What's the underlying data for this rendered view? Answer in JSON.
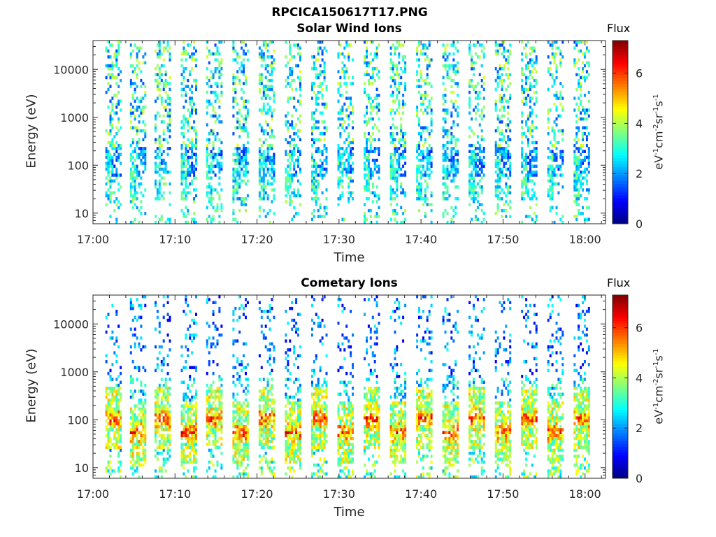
{
  "figure": {
    "suptitle": "RPCICA150617T17.PNG"
  },
  "colorbar": {
    "label": "Flux",
    "unit_base": "eV",
    "unit_exp1": "-1",
    "unit_cm": "cm",
    "unit_exp2": "-2",
    "unit_sr": "sr",
    "unit_exp3": "-1",
    "unit_s": "s",
    "unit_exp4": "-1",
    "ticks": [
      0,
      2,
      4,
      6
    ],
    "range": [
      0,
      7.3
    ],
    "colormap": "jet"
  },
  "chart_data": [
    {
      "type": "heatmap",
      "title": "Solar Wind Ions",
      "xlabel": "Time",
      "ylabel": "Energy (eV)",
      "x_range": [
        "17:00",
        "18:02"
      ],
      "xticks": [
        "17:00",
        "17:10",
        "17:20",
        "17:30",
        "17:40",
        "17:50",
        "18:00"
      ],
      "yscale": "log",
      "ylim": [
        6,
        40000
      ],
      "yticks": [
        10,
        100,
        1000,
        10000
      ],
      "ytick_labels": [
        "10",
        "100",
        "1000",
        "10000"
      ],
      "sweep_period_min": 3.2,
      "sweep_start_times_min": [
        1.5,
        4.5,
        7.5,
        10.7,
        13.8,
        17.0,
        20.2,
        23.4,
        26.6,
        29.8,
        33.0,
        36.2,
        39.4,
        42.6,
        45.8,
        49.0,
        52.2,
        55.4,
        58.6
      ],
      "flux_levels": {
        "high_energy_sparse": 0.8,
        "low_energy_band_100eV": 3.0,
        "below_20eV": 3.5
      }
    },
    {
      "type": "heatmap",
      "title": "Cometary Ions",
      "xlabel": "Time",
      "ylabel": "Energy (eV)",
      "x_range": [
        "17:00",
        "18:02"
      ],
      "xticks": [
        "17:00",
        "17:10",
        "17:20",
        "17:30",
        "17:40",
        "17:50",
        "18:00"
      ],
      "yscale": "log",
      "ylim": [
        6,
        40000
      ],
      "yticks": [
        10,
        100,
        1000,
        10000
      ],
      "ytick_labels": [
        "10",
        "100",
        "1000",
        "10000"
      ],
      "sweep_period_min": 3.2,
      "sweep_start_times_min": [
        1.5,
        4.5,
        7.5,
        10.7,
        13.8,
        17.0,
        20.2,
        23.4,
        26.6,
        29.8,
        33.0,
        36.2,
        39.4,
        42.6,
        45.8,
        49.0,
        52.2,
        55.4,
        58.6
      ],
      "flux_levels": {
        "core_50_100eV": 5.8,
        "band_30_300eV": 3.8,
        "high_energy_sparse": 1.0
      }
    }
  ]
}
